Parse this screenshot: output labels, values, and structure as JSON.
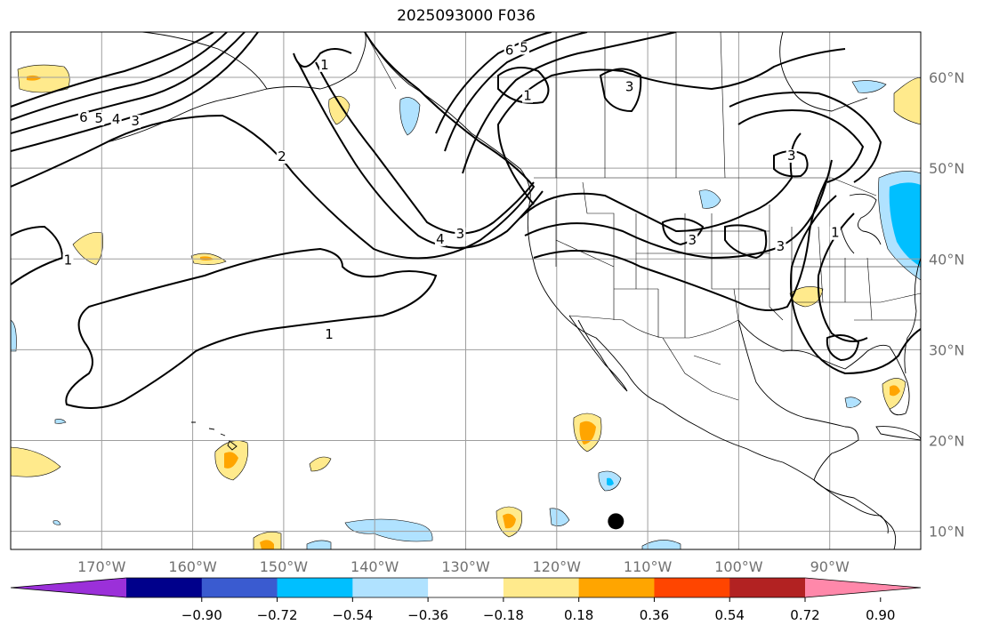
{
  "title": "2025093000 F036",
  "map": {
    "projection": "cylindrical",
    "lon_range": [
      -180,
      -80
    ],
    "lat_range": [
      8,
      65
    ],
    "gridlines": true,
    "lon_ticks": [
      {
        "value": -170,
        "label": "170°W"
      },
      {
        "value": -160,
        "label": "160°W"
      },
      {
        "value": -150,
        "label": "150°W"
      },
      {
        "value": -140,
        "label": "140°W"
      },
      {
        "value": -130,
        "label": "130°W"
      },
      {
        "value": -120,
        "label": "120°W"
      },
      {
        "value": -110,
        "label": "110°W"
      },
      {
        "value": -100,
        "label": "100°W"
      },
      {
        "value": -90,
        "label": "90°W"
      }
    ],
    "lat_ticks": [
      {
        "value": 60,
        "label": "60°N"
      },
      {
        "value": 50,
        "label": "50°N"
      },
      {
        "value": 40,
        "label": "40°N"
      },
      {
        "value": 30,
        "label": "30°N"
      },
      {
        "value": 20,
        "label": "20°N"
      },
      {
        "value": 10,
        "label": "10°N"
      }
    ],
    "contour_labels": [
      {
        "text": "6",
        "lon": -172,
        "lat": 55.2
      },
      {
        "text": "5",
        "lon": -170.3,
        "lat": 55.1
      },
      {
        "text": "4",
        "lon": -168.4,
        "lat": 55.0
      },
      {
        "text": "3",
        "lon": -166.3,
        "lat": 54.8
      },
      {
        "text": "2",
        "lon": -150.2,
        "lat": 50.9
      },
      {
        "text": "1",
        "lon": -173.7,
        "lat": 39.5
      },
      {
        "text": "1",
        "lon": -145,
        "lat": 31.3
      },
      {
        "text": "1",
        "lon": -145.5,
        "lat": 61.0
      },
      {
        "text": "6",
        "lon": -125.2,
        "lat": 62.6
      },
      {
        "text": "5",
        "lon": -123.6,
        "lat": 62.9
      },
      {
        "text": "1",
        "lon": -123.2,
        "lat": 57.6
      },
      {
        "text": "3",
        "lon": -112,
        "lat": 58.6
      },
      {
        "text": "4",
        "lon": -132.8,
        "lat": 41.8
      },
      {
        "text": "3",
        "lon": -130.6,
        "lat": 42.4
      },
      {
        "text": "3",
        "lon": -105.1,
        "lat": 41.7
      },
      {
        "text": "3",
        "lon": -95.4,
        "lat": 41.0
      },
      {
        "text": "3",
        "lon": -94.2,
        "lat": 51.0
      },
      {
        "text": "1",
        "lon": -89.4,
        "lat": 42.5
      }
    ],
    "marker": {
      "name": "black-dot",
      "lon": -113.5,
      "lat": 11.1
    }
  },
  "colorbar": {
    "colors": [
      "#9b30d9",
      "#00008b",
      "#3a5bd0",
      "#00bfff",
      "#b0e2ff",
      "#ffffff",
      "#ffea8c",
      "#ffa500",
      "#ff4500",
      "#b22222",
      "#ff88aa"
    ],
    "ticks": [
      "−0.90",
      "−0.72",
      "−0.54",
      "−0.36",
      "−0.18",
      "0.18",
      "0.36",
      "0.54",
      "0.72",
      "0.90"
    ]
  },
  "colors": {
    "gridline": "#9e9e9e",
    "tick_label": "#707070",
    "contour": "#000000"
  }
}
